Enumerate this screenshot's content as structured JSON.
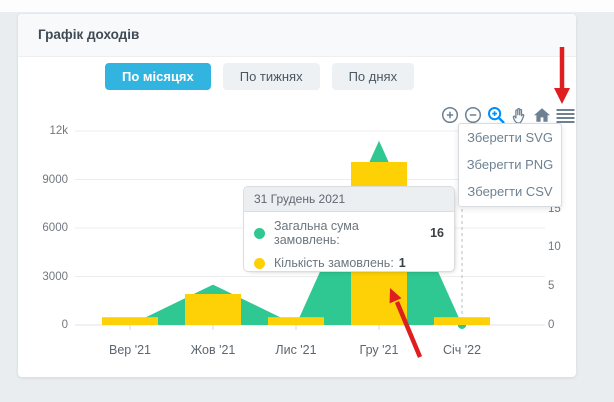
{
  "card": {
    "title": "Графік доходів"
  },
  "tabs": [
    {
      "label": "По місяцях",
      "active": true
    },
    {
      "label": "По тижнях",
      "active": false
    },
    {
      "label": "По днях",
      "active": false
    }
  ],
  "toolbar": {
    "icons": [
      "zoom-in",
      "zoom-out",
      "selection-zoom",
      "pan",
      "home",
      "menu"
    ],
    "icon_color": "#6e8192",
    "selection_zoom_active_color": "#008ffb"
  },
  "export_menu": {
    "items": [
      "Зберегти SVG",
      "Зберегти PNG",
      "Зберегти CSV"
    ]
  },
  "tooltip": {
    "title": "31 Грудень 2021",
    "rows": [
      {
        "label": "Загальна сума замовлень:",
        "value": "16",
        "color": "#2fc792"
      },
      {
        "label": "Кількість замовлень:",
        "value": "1",
        "color": "#fdd105"
      }
    ]
  },
  "colors": {
    "accent_tab": "#31b5e0",
    "series_green": "#2fc792",
    "series_yellow": "#fdd105",
    "arrow_red": "#df1f1f"
  },
  "chart_data": {
    "type": "mixed",
    "categories": [
      "Вер '21",
      "Жов '21",
      "Лис '21",
      "Гру '21",
      "Січ '22"
    ],
    "series": [
      {
        "name": "Загальна сума замовлень",
        "type": "area",
        "y_axis": "left",
        "color": "#2fc792",
        "values": [
          0,
          2500,
          0,
          11400,
          16
        ]
      },
      {
        "name": "Кількість замовлень",
        "type": "bar",
        "y_axis": "right",
        "color": "#fdd105",
        "values": [
          1,
          4,
          1,
          21,
          1
        ]
      }
    ],
    "left_axis": {
      "range": [
        0,
        12000
      ],
      "ticks": [
        0,
        3000,
        6000,
        9000,
        12000
      ],
      "tick_labels": [
        "0",
        "3000",
        "6000",
        "9000",
        "12k"
      ]
    },
    "right_axis": {
      "range": [
        0,
        25
      ],
      "ticks": [
        0,
        5,
        10,
        15
      ],
      "tick_labels": [
        "0",
        "5",
        "10",
        "15"
      ]
    },
    "grid": "horizontal",
    "crosshair_category": "Січ '22",
    "marker": {
      "category": "Січ '22",
      "series": "Загальна сума замовлень",
      "value": 16
    }
  }
}
